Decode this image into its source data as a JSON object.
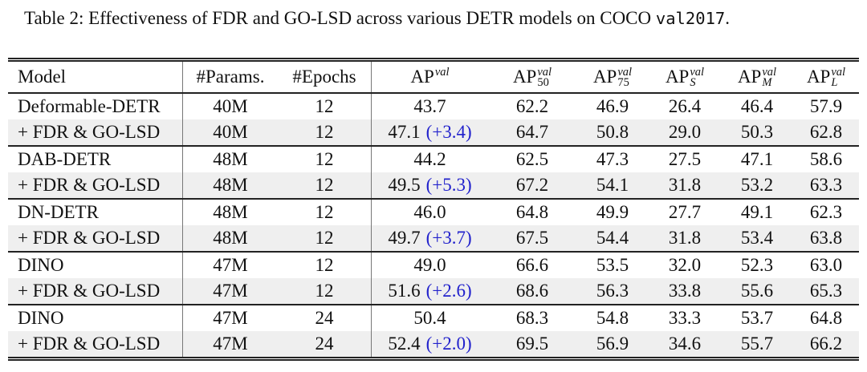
{
  "caption": {
    "prefix": "Table 2: ",
    "text": "Effectiveness of FDR and GO-LSD across various DETR models on COCO ",
    "mono": "val2017",
    "suffix": "."
  },
  "colors": {
    "delta_blue": "#2222cc",
    "row_shade": "#efefef",
    "rule": "#222222",
    "vline": "#777777"
  },
  "table": {
    "headers": [
      {
        "label": "Model"
      },
      {
        "label": "#Params."
      },
      {
        "label": "#Epochs"
      },
      {
        "base": "AP",
        "sup": "val",
        "sub": ""
      },
      {
        "base": "AP",
        "sup": "val",
        "sub": "50"
      },
      {
        "base": "AP",
        "sup": "val",
        "sub": "75"
      },
      {
        "base": "AP",
        "sup": "val",
        "sub": "S"
      },
      {
        "base": "AP",
        "sup": "val",
        "sub": "M"
      },
      {
        "base": "AP",
        "sup": "val",
        "sub": "L"
      }
    ],
    "groups": [
      {
        "rows": [
          {
            "model": "Deformable-DETR",
            "params": "40M",
            "epochs": "12",
            "ap": "43.7",
            "delta": "",
            "ap50": "62.2",
            "ap75": "46.9",
            "apS": "26.4",
            "apM": "46.4",
            "apL": "57.9",
            "shaded": false
          },
          {
            "model": "+ FDR & GO-LSD",
            "params": "40M",
            "epochs": "12",
            "ap": "47.1",
            "delta": "(+3.4)",
            "ap50": "64.7",
            "ap75": "50.8",
            "apS": "29.0",
            "apM": "50.3",
            "apL": "62.8",
            "shaded": true
          }
        ]
      },
      {
        "rows": [
          {
            "model": "DAB-DETR",
            "params": "48M",
            "epochs": "12",
            "ap": "44.2",
            "delta": "",
            "ap50": "62.5",
            "ap75": "47.3",
            "apS": "27.5",
            "apM": "47.1",
            "apL": "58.6",
            "shaded": false
          },
          {
            "model": "+ FDR & GO-LSD",
            "params": "48M",
            "epochs": "12",
            "ap": "49.5",
            "delta": "(+5.3)",
            "ap50": "67.2",
            "ap75": "54.1",
            "apS": "31.8",
            "apM": "53.2",
            "apL": "63.3",
            "shaded": true
          }
        ]
      },
      {
        "rows": [
          {
            "model": "DN-DETR",
            "params": "48M",
            "epochs": "12",
            "ap": "46.0",
            "delta": "",
            "ap50": "64.8",
            "ap75": "49.9",
            "apS": "27.7",
            "apM": "49.1",
            "apL": "62.3",
            "shaded": false
          },
          {
            "model": "+ FDR & GO-LSD",
            "params": "48M",
            "epochs": "12",
            "ap": "49.7",
            "delta": "(+3.7)",
            "ap50": "67.5",
            "ap75": "54.4",
            "apS": "31.8",
            "apM": "53.4",
            "apL": "63.8",
            "shaded": true
          }
        ]
      },
      {
        "rows": [
          {
            "model": "DINO",
            "params": "47M",
            "epochs": "12",
            "ap": "49.0",
            "delta": "",
            "ap50": "66.6",
            "ap75": "53.5",
            "apS": "32.0",
            "apM": "52.3",
            "apL": "63.0",
            "shaded": false
          },
          {
            "model": "+ FDR & GO-LSD",
            "params": "47M",
            "epochs": "12",
            "ap": "51.6",
            "delta": "(+2.6)",
            "ap50": "68.6",
            "ap75": "56.3",
            "apS": "33.8",
            "apM": "55.6",
            "apL": "65.3",
            "shaded": true
          }
        ]
      },
      {
        "rows": [
          {
            "model": "DINO",
            "params": "47M",
            "epochs": "24",
            "ap": "50.4",
            "delta": "",
            "ap50": "68.3",
            "ap75": "54.8",
            "apS": "33.3",
            "apM": "53.7",
            "apL": "64.8",
            "shaded": false
          },
          {
            "model": "+ FDR & GO-LSD",
            "params": "47M",
            "epochs": "24",
            "ap": "52.4",
            "delta": "(+2.0)",
            "ap50": "69.5",
            "ap75": "56.9",
            "apS": "34.6",
            "apM": "55.7",
            "apL": "66.2",
            "shaded": true
          }
        ]
      }
    ]
  }
}
